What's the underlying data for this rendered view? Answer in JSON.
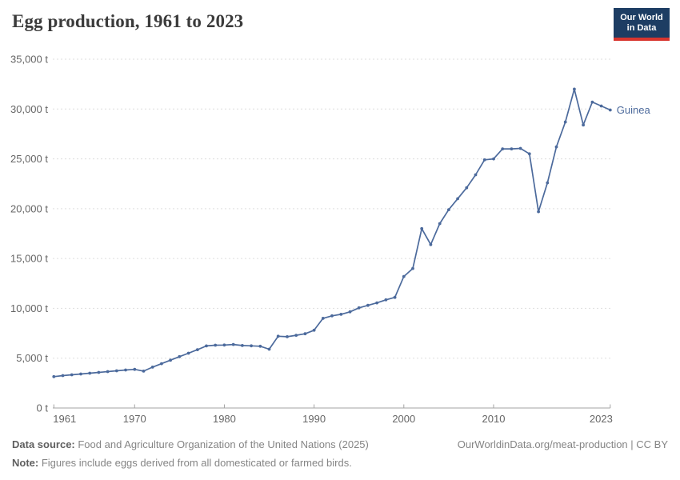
{
  "header": {
    "title": "Egg production, 1961 to 2023",
    "logo": {
      "line1": "Our World",
      "line2": "in Data"
    }
  },
  "chart_data": {
    "type": "line",
    "title": "Egg production, 1961 to 2023",
    "unit": "t",
    "grid": "horizontal-dashed",
    "legend_position": "end-of-line-label",
    "ylim": [
      0,
      35000
    ],
    "yticks": [
      0,
      5000,
      10000,
      15000,
      20000,
      25000,
      30000,
      35000
    ],
    "ytick_suffix": " t",
    "xticks": [
      1961,
      1970,
      1980,
      1990,
      2000,
      2010,
      2023
    ],
    "x": [
      1961,
      1962,
      1963,
      1964,
      1965,
      1966,
      1967,
      1968,
      1969,
      1970,
      1971,
      1972,
      1973,
      1974,
      1975,
      1976,
      1977,
      1978,
      1979,
      1980,
      1981,
      1982,
      1983,
      1984,
      1985,
      1986,
      1987,
      1988,
      1989,
      1990,
      1991,
      1992,
      1993,
      1994,
      1995,
      1996,
      1997,
      1998,
      1999,
      2000,
      2001,
      2002,
      2003,
      2004,
      2005,
      2006,
      2007,
      2008,
      2009,
      2010,
      2011,
      2012,
      2013,
      2014,
      2015,
      2016,
      2017,
      2018,
      2019,
      2020,
      2021,
      2022,
      2023
    ],
    "series": [
      {
        "name": "Guinea",
        "values": [
          3150,
          3250,
          3330,
          3410,
          3490,
          3570,
          3650,
          3730,
          3810,
          3880,
          3700,
          4100,
          4450,
          4800,
          5150,
          5500,
          5850,
          6230,
          6300,
          6320,
          6370,
          6270,
          6240,
          6200,
          5900,
          7200,
          7150,
          7300,
          7450,
          7800,
          9000,
          9250,
          9400,
          9650,
          10050,
          10300,
          10550,
          10850,
          11100,
          13200,
          14000,
          18000,
          16400,
          18500,
          19900,
          21000,
          22100,
          23400,
          24900,
          25000,
          26000,
          26000,
          26050,
          25500,
          19700,
          22600,
          26200,
          28700,
          32000,
          28400,
          30700,
          30300,
          29900
        ]
      }
    ]
  },
  "colors": {
    "line": "#4C6A9C",
    "series_label": "#4C6A9C",
    "grid": "#dddddd",
    "axis": "#a3a3a3",
    "tick_text": "#666666"
  },
  "footer": {
    "source_label": "Data source:",
    "source_text": " Food and Agriculture Organization of the United Nations (2025)",
    "note_label": "Note:",
    "note_text": " Figures include eggs derived from all domesticated or farmed birds.",
    "link_text": "OurWorldinData.org/meat-production | CC BY"
  }
}
